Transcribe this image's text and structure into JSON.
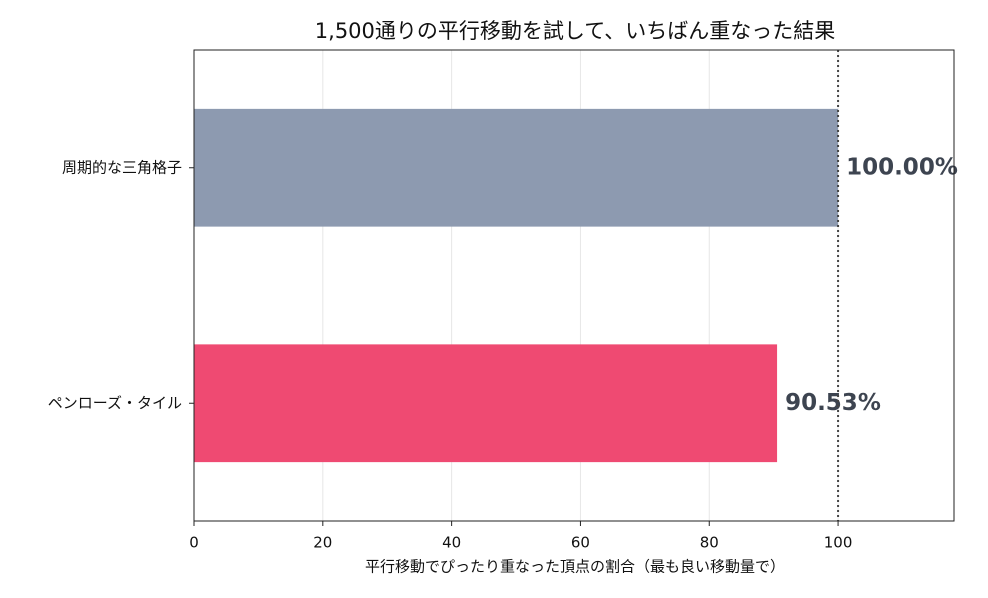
{
  "chart_data": {
    "type": "barh",
    "title": "1,500通りの平行移動を試して、いちばん重なった結果",
    "x_label": "平行移動でぴったり重なった頂点の割合（最も良い移動量で）",
    "categories": [
      "周期的な三角格子",
      "ペンローズ・タイル"
    ],
    "values": [
      100,
      90.53
    ],
    "value_labels": [
      "100.00%",
      "90.53%"
    ],
    "colors": [
      "#8d9ab0",
      "#ef4a72"
    ],
    "xlim": [
      0,
      118
    ],
    "xticks": [
      0,
      20,
      40,
      60,
      80,
      100
    ],
    "reference_line": 100,
    "grid": true
  }
}
